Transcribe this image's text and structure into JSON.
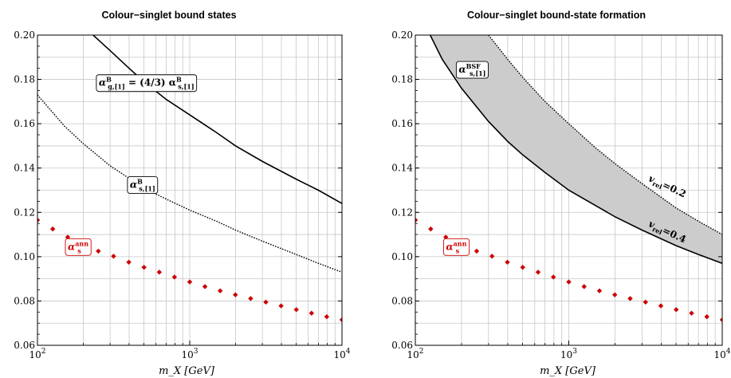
{
  "chart_data": [
    {
      "type": "line",
      "title": "Colour−singlet bound states",
      "xlabel": "m_X [GeV]",
      "ylabel": "",
      "x_scale": "log",
      "xlim": [
        100,
        10000
      ],
      "ylim": [
        0.06,
        0.2
      ],
      "grid": true,
      "x_tick_labels": [
        {
          "base": "10",
          "exp": "2",
          "value": 100
        },
        {
          "base": "10",
          "exp": "3",
          "value": 1000
        },
        {
          "base": "10",
          "exp": "4",
          "value": 10000
        }
      ],
      "y_tick_labels": [
        "0.06",
        "0.08",
        "0.10",
        "0.12",
        "0.14",
        "0.16",
        "0.18",
        "0.20"
      ],
      "series": [
        {
          "name": "α^B_{g,[1]} = (4/3) α^B_{s,[1]}",
          "style": "solid",
          "color": "#000000",
          "x": [
            232,
            300,
            400,
            500,
            700,
            1000,
            1500,
            2000,
            3000,
            5000,
            7000,
            10000
          ],
          "y": [
            0.2,
            0.193,
            0.185,
            0.179,
            0.171,
            0.164,
            0.156,
            0.15,
            0.143,
            0.135,
            0.13,
            0.124
          ]
        },
        {
          "name": "α^B_{s,[1]}",
          "style": "dotted",
          "color": "#000000",
          "x": [
            100,
            150,
            200,
            300,
            500,
            700,
            1000,
            1500,
            2000,
            3000,
            5000,
            7000,
            10000
          ],
          "y": [
            0.173,
            0.159,
            0.151,
            0.141,
            0.131,
            0.126,
            0.121,
            0.116,
            0.112,
            0.107,
            0.101,
            0.097,
            0.093
          ]
        },
        {
          "name": "α_s^ann",
          "style": "markers",
          "color": "#cc0000",
          "x": [
            100,
            126,
            158,
            200,
            251,
            316,
            398,
            501,
            631,
            794,
            1000,
            1259,
            1585,
            1995,
            2512,
            3162,
            3981,
            5012,
            6310,
            7943,
            10000
          ],
          "y": [
            0.1165,
            0.1125,
            0.1088,
            0.1055,
            0.1025,
            0.1002,
            0.0975,
            0.0952,
            0.093,
            0.0908,
            0.0886,
            0.0865,
            0.0846,
            0.0828,
            0.0811,
            0.0795,
            0.0778,
            0.0761,
            0.0745,
            0.0729,
            0.0715
          ]
        }
      ],
      "labels": [
        {
          "text_main": "α",
          "sup": "B",
          "sub": "g,[1]",
          "rest": " = (4/3) α",
          "sup2": "B",
          "sub2": "s,[1]",
          "x": 520,
          "y": 0.1785
        },
        {
          "text_main": "α",
          "sup": "B",
          "sub": "s,[1]",
          "x": 490,
          "y": 0.1325
        },
        {
          "text_main": "α",
          "sup": "ann",
          "sub": "s",
          "x": 185,
          "y": 0.1045,
          "color": "#cc0000"
        }
      ]
    },
    {
      "type": "area",
      "title": "Colour−singlet bound-state formation",
      "xlabel": "m_X [GeV]",
      "ylabel": "",
      "x_scale": "log",
      "xlim": [
        100,
        10000
      ],
      "ylim": [
        0.06,
        0.2
      ],
      "grid": true,
      "fill_color": "#cccccc",
      "x_tick_labels": [
        {
          "base": "10",
          "exp": "2",
          "value": 100
        },
        {
          "base": "10",
          "exp": "3",
          "value": 1000
        },
        {
          "base": "10",
          "exp": "4",
          "value": 10000
        }
      ],
      "y_tick_labels": [
        "0.06",
        "0.08",
        "0.10",
        "0.12",
        "0.14",
        "0.16",
        "0.18",
        "0.20"
      ],
      "series": [
        {
          "name": "v_rel=0.2",
          "style": "dotted",
          "color": "#000000",
          "x": [
            300,
            400,
            500,
            700,
            1000,
            1500,
            2000,
            3000,
            5000,
            7000,
            10000
          ],
          "y": [
            0.2,
            0.189,
            0.181,
            0.17,
            0.16,
            0.149,
            0.142,
            0.133,
            0.122,
            0.116,
            0.11
          ]
        },
        {
          "name": "v_rel=0.4",
          "style": "solid",
          "color": "#000000",
          "x": [
            125,
            150,
            200,
            300,
            400,
            500,
            700,
            1000,
            1500,
            2000,
            3000,
            5000,
            7000,
            10000
          ],
          "y": [
            0.2,
            0.189,
            0.176,
            0.161,
            0.152,
            0.146,
            0.138,
            0.13,
            0.123,
            0.118,
            0.112,
            0.105,
            0.101,
            0.097
          ]
        },
        {
          "name": "α_s^ann",
          "style": "markers",
          "color": "#cc0000",
          "x": [
            100,
            126,
            158,
            200,
            251,
            316,
            398,
            501,
            631,
            794,
            1000,
            1259,
            1585,
            1995,
            2512,
            3162,
            3981,
            5012,
            6310,
            7943,
            10000
          ],
          "y": [
            0.1165,
            0.1125,
            0.1088,
            0.1055,
            0.1025,
            0.1002,
            0.0975,
            0.0952,
            0.093,
            0.0908,
            0.0886,
            0.0865,
            0.0846,
            0.0828,
            0.0811,
            0.0795,
            0.0778,
            0.0761,
            0.0745,
            0.0729,
            0.0715
          ]
        }
      ],
      "labels": [
        {
          "text_main": "α",
          "sup": "BSF",
          "sub": "s,[1]",
          "x": 235,
          "y": 0.1845
        },
        {
          "text_main": "α",
          "sup": "ann",
          "sub": "s",
          "x": 185,
          "y": 0.1045,
          "color": "#cc0000"
        }
      ],
      "band_labels": [
        {
          "prefix": "v",
          "sub": "rel",
          "suffix": "=0.2",
          "x": 4300,
          "y": 0.1305
        },
        {
          "prefix": "v",
          "sub": "rel",
          "suffix": "=0.4",
          "x": 4300,
          "y": 0.11
        }
      ]
    }
  ]
}
